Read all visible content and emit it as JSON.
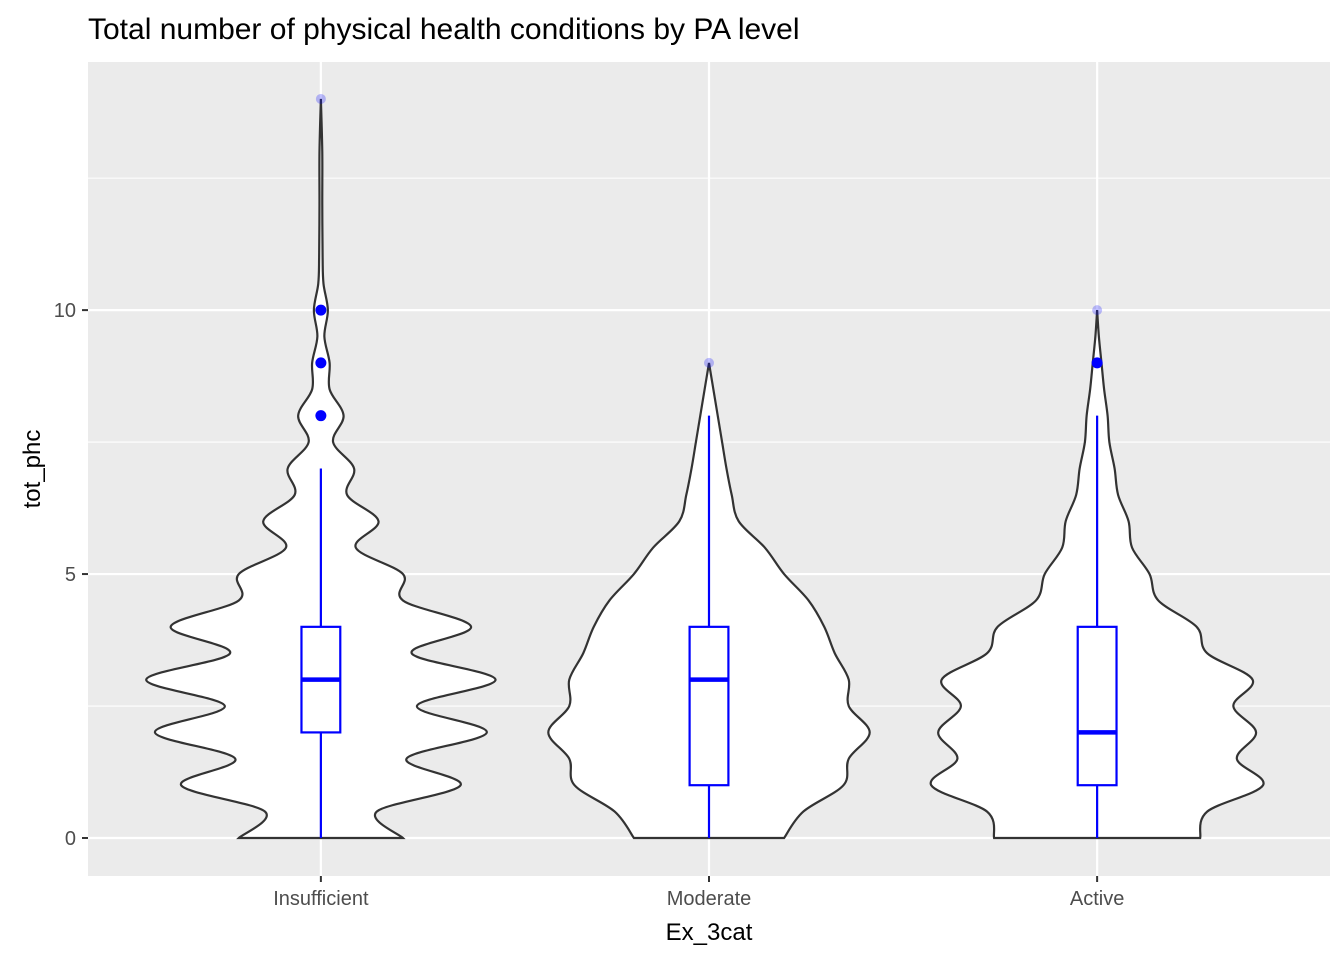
{
  "chart_data": {
    "type": "violin",
    "title": "Total number of physical health conditions by PA level",
    "xlabel": "Ex_3cat",
    "ylabel": "tot_phc",
    "categories": [
      "Insufficient",
      "Moderate",
      "Active"
    ],
    "ylim": [
      -0.72,
      14.7
    ],
    "yticks": [
      0,
      5,
      10
    ],
    "ytick_labels": [
      "0",
      "5",
      "10"
    ],
    "grid": true,
    "colors": {
      "violin_fill": "#FFFFFF",
      "violin_line": "#333333",
      "box": "#0000FF",
      "panel": "#EBEBEB",
      "grid": "#FFFFFF"
    },
    "violins": [
      {
        "name": "Insufficient",
        "y": [
          0,
          0.5,
          1,
          1.5,
          2,
          2.5,
          3,
          3.5,
          4,
          4.5,
          5,
          5.5,
          6,
          6.5,
          7,
          7.5,
          8,
          8.5,
          9,
          9.5,
          10,
          10.5,
          11,
          12,
          13,
          14
        ],
        "density": [
          0.47,
          0.32,
          0.8,
          0.49,
          0.95,
          0.55,
          1.0,
          0.52,
          0.86,
          0.47,
          0.47,
          0.2,
          0.33,
          0.15,
          0.19,
          0.07,
          0.13,
          0.05,
          0.05,
          0.02,
          0.04,
          0.015,
          0.01,
          0.008,
          0.008,
          0.0
        ]
      },
      {
        "name": "Moderate",
        "y": [
          0,
          0.5,
          1,
          1.5,
          2,
          2.5,
          3,
          3.5,
          4,
          4.5,
          5,
          5.5,
          6,
          6.5,
          7,
          7.5,
          8,
          8.5,
          9
        ],
        "density": [
          0.43,
          0.54,
          0.77,
          0.8,
          0.92,
          0.8,
          0.8,
          0.72,
          0.66,
          0.57,
          0.43,
          0.32,
          0.17,
          0.13,
          0.1,
          0.075,
          0.05,
          0.025,
          0.0
        ]
      },
      {
        "name": "Active",
        "y": [
          0,
          0.5,
          1,
          1.5,
          2,
          2.5,
          3,
          3.5,
          4,
          4.5,
          5,
          5.5,
          6,
          6.5,
          7,
          7.5,
          8,
          8.5,
          9,
          9.5,
          10
        ],
        "density": [
          0.59,
          0.63,
          0.95,
          0.8,
          0.91,
          0.78,
          0.89,
          0.63,
          0.57,
          0.35,
          0.3,
          0.2,
          0.18,
          0.12,
          0.1,
          0.07,
          0.06,
          0.04,
          0.025,
          0.01,
          0.0
        ]
      }
    ],
    "boxplots": [
      {
        "name": "Insufficient",
        "lower_whisker": 0,
        "q1": 2,
        "median": 3,
        "q3": 4,
        "upper_whisker": 7,
        "outliers": [
          8,
          9,
          10
        ]
      },
      {
        "name": "Moderate",
        "lower_whisker": 0,
        "q1": 1,
        "median": 3,
        "q3": 4,
        "upper_whisker": 8,
        "outliers": []
      },
      {
        "name": "Active",
        "lower_whisker": 0,
        "q1": 1,
        "median": 2,
        "q3": 4,
        "upper_whisker": 8,
        "outliers": [
          9
        ]
      }
    ],
    "faint_points": [
      {
        "name": "Insufficient",
        "values": [
          14,
          10
        ]
      },
      {
        "name": "Moderate",
        "values": [
          9
        ]
      },
      {
        "name": "Active",
        "values": [
          10,
          9
        ]
      }
    ]
  }
}
